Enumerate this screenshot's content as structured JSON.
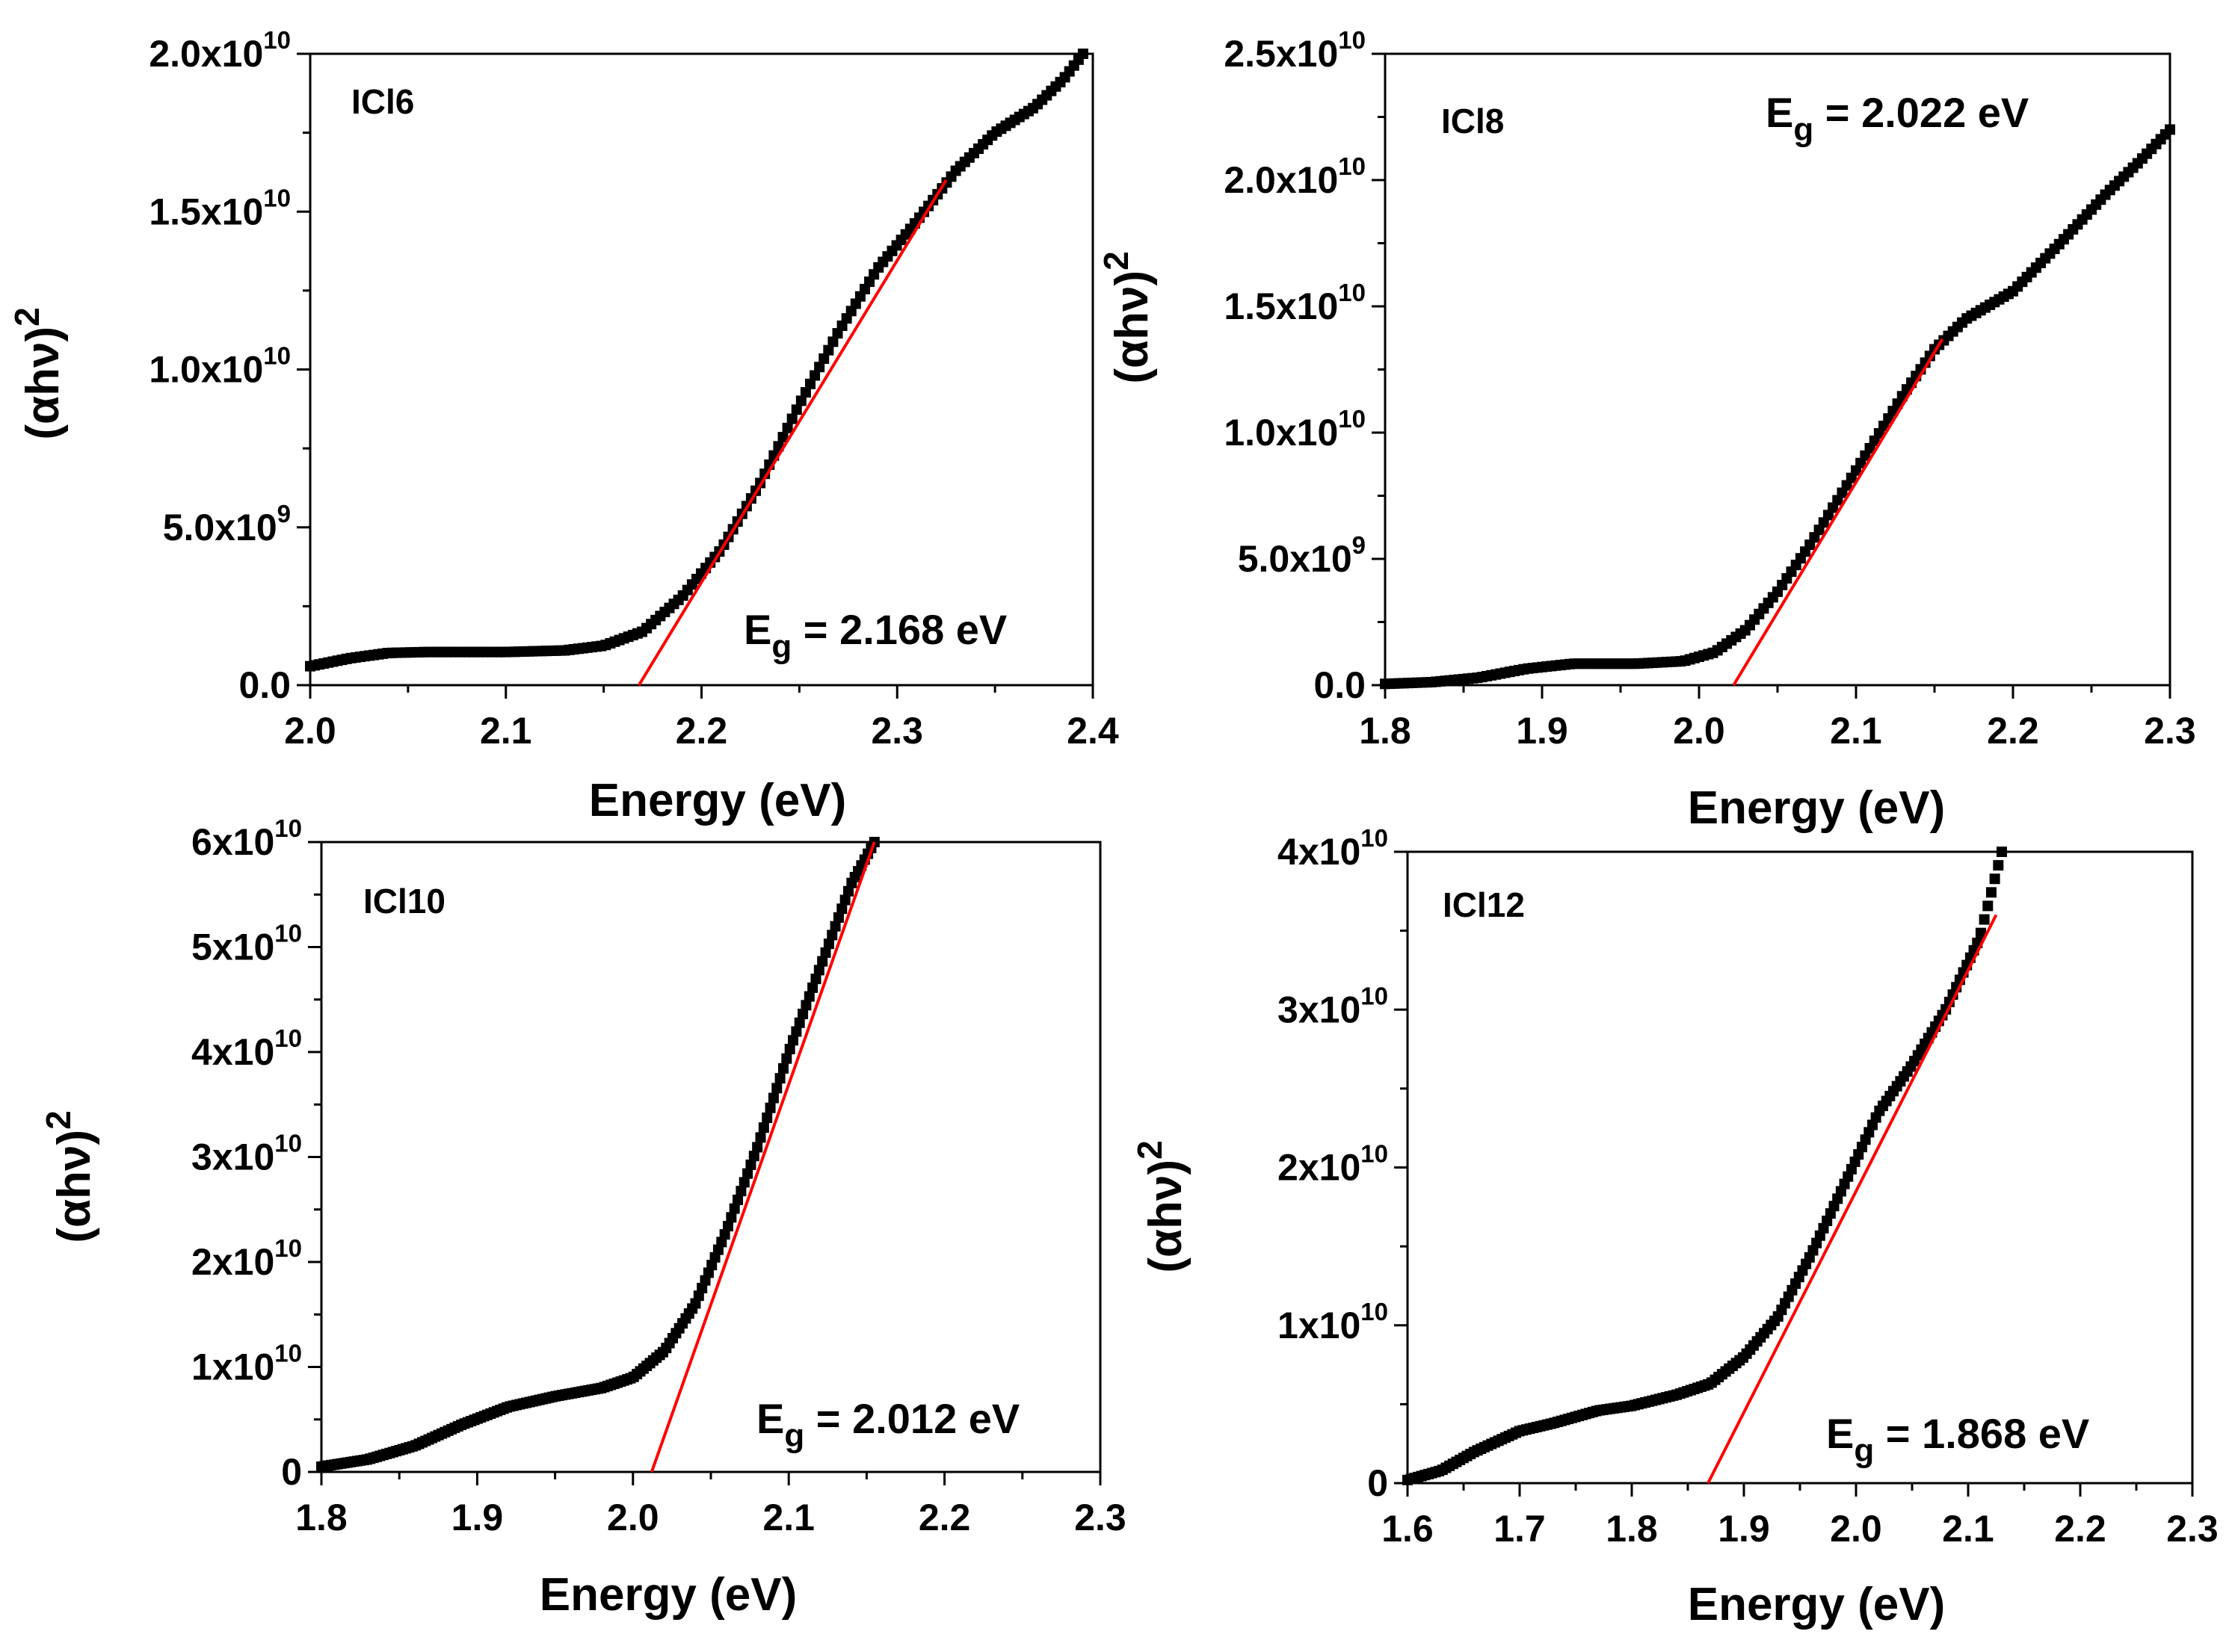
{
  "chart_data": [
    {
      "type": "scatter",
      "panel_label": "ICl6",
      "xlabel": "Energy (eV)",
      "ylabel_base": "(αhν)",
      "ylabel_sup": "2",
      "eg_main": "E",
      "eg_sub": "g",
      "eg_rest": " = 2.168 eV",
      "xlim": [
        2.0,
        2.4
      ],
      "ylim": [
        0,
        20000000000.0
      ],
      "x_ticks": [
        {
          "value": 2.0,
          "label": "2.0"
        },
        {
          "value": 2.1,
          "label": "2.1"
        },
        {
          "value": 2.2,
          "label": "2.2"
        },
        {
          "value": 2.3,
          "label": "2.3"
        },
        {
          "value": 2.4,
          "label": "2.4"
        }
      ],
      "y_ticks": [
        {
          "value": 0,
          "base": "0.0",
          "exp": ""
        },
        {
          "value": 5000000000.0,
          "base": "5.0x10",
          "exp": "9"
        },
        {
          "value": 10000000000.0,
          "base": "1.0x10",
          "exp": "10"
        },
        {
          "value": 15000000000.0,
          "base": "1.5x10",
          "exp": "10"
        },
        {
          "value": 20000000000.0,
          "base": "2.0x10",
          "exp": "10"
        }
      ],
      "curve": [
        [
          2.0,
          600000000.0
        ],
        [
          2.02,
          850000000.0
        ],
        [
          2.04,
          1020000000.0
        ],
        [
          2.06,
          1050000000.0
        ],
        [
          2.1,
          1050000000.0
        ],
        [
          2.13,
          1100000000.0
        ],
        [
          2.15,
          1250000000.0
        ],
        [
          2.17,
          1700000000.0
        ],
        [
          2.19,
          2800000000.0
        ],
        [
          2.21,
          4300000000.0
        ],
        [
          2.23,
          6400000000.0
        ],
        [
          2.25,
          8900000000.0
        ],
        [
          2.27,
          11200000000.0
        ],
        [
          2.29,
          13200000000.0
        ],
        [
          2.31,
          14700000000.0
        ],
        [
          2.33,
          16300000000.0
        ],
        [
          2.35,
          17500000000.0
        ],
        [
          2.37,
          18300000000.0
        ],
        [
          2.385,
          19200000000.0
        ],
        [
          2.395,
          20000000000.0
        ]
      ],
      "fit": {
        "x": [
          2.168,
          2.325
        ],
        "y": [
          0,
          16000000000.0
        ]
      }
    },
    {
      "type": "scatter",
      "panel_label": "ICl8",
      "xlabel": "Energy (eV)",
      "ylabel_base": "(αhν)",
      "ylabel_sup": "2",
      "eg_main": "E",
      "eg_sub": "g",
      "eg_rest": " = 2.022 eV",
      "xlim": [
        1.8,
        2.3
      ],
      "ylim": [
        0,
        25000000000.0
      ],
      "x_ticks": [
        {
          "value": 1.8,
          "label": "1.8"
        },
        {
          "value": 1.9,
          "label": "1.9"
        },
        {
          "value": 2.0,
          "label": "2.0"
        },
        {
          "value": 2.1,
          "label": "2.1"
        },
        {
          "value": 2.2,
          "label": "2.2"
        },
        {
          "value": 2.3,
          "label": "2.3"
        }
      ],
      "y_ticks": [
        {
          "value": 0,
          "base": "0.0",
          "exp": ""
        },
        {
          "value": 5000000000.0,
          "base": "5.0x10",
          "exp": "9"
        },
        {
          "value": 10000000000.0,
          "base": "1.0x10",
          "exp": "10"
        },
        {
          "value": 15000000000.0,
          "base": "1.5x10",
          "exp": "10"
        },
        {
          "value": 20000000000.0,
          "base": "2.0x10",
          "exp": "10"
        },
        {
          "value": 25000000000.0,
          "base": "2.5x10",
          "exp": "10"
        }
      ],
      "curve": [
        [
          1.8,
          50000000.0
        ],
        [
          1.83,
          120000000.0
        ],
        [
          1.86,
          300000000.0
        ],
        [
          1.89,
          650000000.0
        ],
        [
          1.92,
          850000000.0
        ],
        [
          1.96,
          850000000.0
        ],
        [
          1.99,
          950000000.0
        ],
        [
          2.01,
          1300000000.0
        ],
        [
          2.03,
          2200000000.0
        ],
        [
          2.05,
          3700000000.0
        ],
        [
          2.07,
          5500000000.0
        ],
        [
          2.09,
          7500000000.0
        ],
        [
          2.11,
          9500000000.0
        ],
        [
          2.13,
          11500000000.0
        ],
        [
          2.15,
          13300000000.0
        ],
        [
          2.17,
          14500000000.0
        ],
        [
          2.2,
          15600000000.0
        ],
        [
          2.23,
          17500000000.0
        ],
        [
          2.26,
          19500000000.0
        ],
        [
          2.28,
          20700000000.0
        ],
        [
          2.3,
          22000000000.0
        ]
      ],
      "fit": {
        "x": [
          2.022,
          2.155
        ],
        "y": [
          0,
          13700000000.0
        ]
      }
    },
    {
      "type": "scatter",
      "panel_label": "ICl10",
      "xlabel": "Energy (eV)",
      "ylabel_base": "(αhν)",
      "ylabel_sup": "2",
      "eg_main": "E",
      "eg_sub": "g",
      "eg_rest": " = 2.012 eV",
      "xlim": [
        1.8,
        2.3
      ],
      "ylim": [
        0,
        60000000000.0
      ],
      "x_ticks": [
        {
          "value": 1.8,
          "label": "1.8"
        },
        {
          "value": 1.9,
          "label": "1.9"
        },
        {
          "value": 2.0,
          "label": "2.0"
        },
        {
          "value": 2.1,
          "label": "2.1"
        },
        {
          "value": 2.2,
          "label": "2.2"
        },
        {
          "value": 2.3,
          "label": "2.3"
        }
      ],
      "y_ticks": [
        {
          "value": 0,
          "base": "0",
          "exp": ""
        },
        {
          "value": 10000000000.0,
          "base": "1x10",
          "exp": "10"
        },
        {
          "value": 20000000000.0,
          "base": "2x10",
          "exp": "10"
        },
        {
          "value": 30000000000.0,
          "base": "3x10",
          "exp": "10"
        },
        {
          "value": 40000000000.0,
          "base": "4x10",
          "exp": "10"
        },
        {
          "value": 50000000000.0,
          "base": "5x10",
          "exp": "10"
        },
        {
          "value": 60000000000.0,
          "base": "6x10",
          "exp": "10"
        }
      ],
      "curve": [
        [
          1.8,
          500000000.0
        ],
        [
          1.83,
          1200000000.0
        ],
        [
          1.86,
          2500000000.0
        ],
        [
          1.89,
          4500000000.0
        ],
        [
          1.92,
          6200000000.0
        ],
        [
          1.95,
          7200000000.0
        ],
        [
          1.98,
          8000000000.0
        ],
        [
          2.0,
          9000000000.0
        ],
        [
          2.02,
          11500000000.0
        ],
        [
          2.04,
          16000000000.0
        ],
        [
          2.06,
          23000000000.0
        ],
        [
          2.08,
          31000000000.0
        ],
        [
          2.1,
          40000000000.0
        ],
        [
          2.12,
          48000000000.0
        ],
        [
          2.14,
          56000000000.0
        ],
        [
          2.155,
          60000000000.0
        ]
      ],
      "fit": {
        "x": [
          2.012,
          2.155
        ],
        "y": [
          0,
          60000000000.0
        ]
      }
    },
    {
      "type": "scatter",
      "panel_label": "ICl12",
      "xlabel": "Energy (eV)",
      "ylabel_base": "(αhν)",
      "ylabel_sup": "2",
      "eg_main": "E",
      "eg_sub": "g",
      "eg_rest": " = 1.868 eV",
      "xlim": [
        1.6,
        2.3
      ],
      "ylim": [
        0,
        40000000000.0
      ],
      "x_ticks": [
        {
          "value": 1.6,
          "label": "1.6"
        },
        {
          "value": 1.7,
          "label": "1.7"
        },
        {
          "value": 1.8,
          "label": "1.8"
        },
        {
          "value": 1.9,
          "label": "1.9"
        },
        {
          "value": 2.0,
          "label": "2.0"
        },
        {
          "value": 2.1,
          "label": "2.1"
        },
        {
          "value": 2.2,
          "label": "2.2"
        },
        {
          "value": 2.3,
          "label": "2.3"
        }
      ],
      "y_ticks": [
        {
          "value": 0,
          "base": "0",
          "exp": ""
        },
        {
          "value": 10000000000.0,
          "base": "1x10",
          "exp": "10"
        },
        {
          "value": 20000000000.0,
          "base": "2x10",
          "exp": "10"
        },
        {
          "value": 30000000000.0,
          "base": "3x10",
          "exp": "10"
        },
        {
          "value": 40000000000.0,
          "base": "4x10",
          "exp": "10"
        }
      ],
      "curve": [
        [
          1.6,
          200000000.0
        ],
        [
          1.63,
          800000000.0
        ],
        [
          1.66,
          2000000000.0
        ],
        [
          1.7,
          3300000000.0
        ],
        [
          1.73,
          3800000000.0
        ],
        [
          1.77,
          4600000000.0
        ],
        [
          1.8,
          4900000000.0
        ],
        [
          1.84,
          5600000000.0
        ],
        [
          1.87,
          6300000000.0
        ],
        [
          1.9,
          8000000000.0
        ],
        [
          1.93,
          10500000000.0
        ],
        [
          1.96,
          14500000000.0
        ],
        [
          1.99,
          19000000000.0
        ],
        [
          2.02,
          23500000000.0
        ],
        [
          2.05,
          26500000000.0
        ],
        [
          2.08,
          30000000000.0
        ],
        [
          2.11,
          34500000000.0
        ],
        [
          2.13,
          40000000000.0
        ]
      ],
      "fit": {
        "x": [
          1.868,
          2.125
        ],
        "y": [
          0,
          36000000000.0
        ]
      }
    }
  ]
}
